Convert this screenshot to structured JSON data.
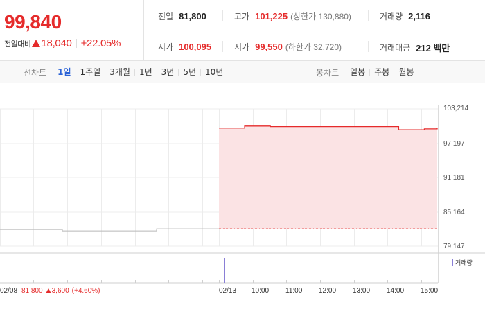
{
  "quote": {
    "price": "99,840",
    "change_label": "전일대비",
    "change": "18,040",
    "change_pct": "+22.05%"
  },
  "stats": {
    "prev_close_label": "전일",
    "prev_close": "81,800",
    "high_label": "고가",
    "high": "101,225",
    "upper_limit": "(상한가 130,880)",
    "volume_label": "거래량",
    "volume": "2,116",
    "open_label": "시가",
    "open": "100,095",
    "low_label": "저가",
    "low": "99,550",
    "lower_limit": "(하한가 32,720)",
    "turnover_label": "거래대금",
    "turnover": "212 백만"
  },
  "toolbar": {
    "line_label": "선차트",
    "line_periods": [
      "1일",
      "1주일",
      "3개월",
      "1년",
      "3년",
      "5년",
      "10년"
    ],
    "active_period": "1일",
    "candle_label": "봉차트",
    "candle_periods": [
      "일봉",
      "주봉",
      "월봉"
    ]
  },
  "chart_data": {
    "type": "line",
    "y_ticks": [
      "103,214",
      "97,197",
      "91,181",
      "85,164",
      "79,147"
    ],
    "x_ticks": [
      "02/13",
      "10:00",
      "11:00",
      "12:00",
      "13:00",
      "14:00",
      "15:00"
    ],
    "ylim": [
      79147,
      103214
    ],
    "prev_close": 81800,
    "series": [
      {
        "values": [
          99840,
          99840,
          100200,
          100200,
          100095,
          100095,
          100095,
          100095,
          100095,
          100095,
          100095,
          100095,
          100095,
          100095,
          99550,
          99550,
          99700,
          99840
        ]
      }
    ],
    "volume_legend": "거래량",
    "prev_day": {
      "date": "02/08",
      "close": "81,800",
      "change": "3,600",
      "change_pct": "(+4.60%)"
    }
  },
  "colors": {
    "up": "#e52b2b",
    "active": "#2a62d6",
    "fill": "#fbe3e4",
    "volume": "#8a7fd6"
  }
}
